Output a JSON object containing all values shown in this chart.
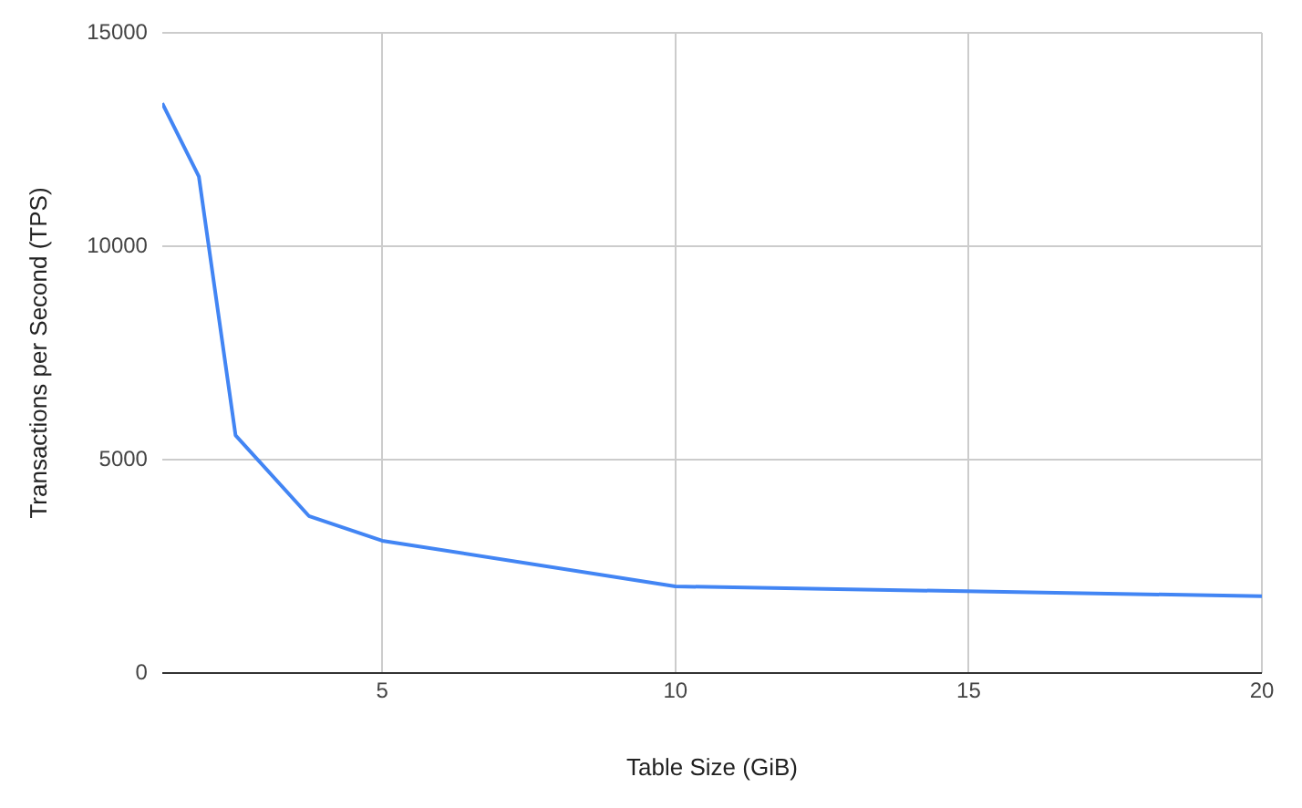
{
  "chart_data": {
    "type": "line",
    "xlabel": "Table Size (GiB)",
    "ylabel": "Transactions per Second (TPS)",
    "x": [
      1.25,
      1.875,
      2.5,
      3.75,
      5,
      10,
      20
    ],
    "series": [
      {
        "color": "#4285f4",
        "values": [
          13350,
          11630,
          5570,
          3680,
          3100,
          2030,
          1800
        ]
      }
    ],
    "xlim": [
      1.25,
      20
    ],
    "xticks": [
      5,
      10,
      15,
      20
    ],
    "ylim": [
      0,
      15000
    ],
    "yticks": [
      0,
      5000,
      10000,
      15000
    ],
    "grid": true,
    "legend": false,
    "marker": "none",
    "line_style": "solid"
  }
}
